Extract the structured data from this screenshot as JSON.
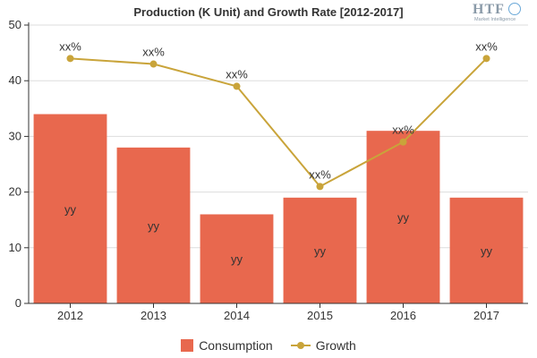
{
  "chart_data": {
    "type": "bar",
    "title": "Production (K Unit) and Growth Rate [2012-2017]",
    "categories": [
      "2012",
      "2013",
      "2014",
      "2015",
      "2016",
      "2017"
    ],
    "ylim": [
      0,
      50
    ],
    "yticks": [
      0,
      10,
      20,
      30,
      40,
      50
    ],
    "grid": true,
    "legend_position": "bottom",
    "series": [
      {
        "name": "Consumption",
        "type": "bar",
        "color": "#e8684e",
        "values": [
          34,
          28,
          16,
          19,
          31,
          19
        ],
        "labels": [
          "yy",
          "yy",
          "yy",
          "yy",
          "yy",
          "yy"
        ]
      },
      {
        "name": "Growth",
        "type": "line",
        "color": "#c9a43a",
        "values": [
          44,
          43,
          39,
          21,
          29,
          44
        ],
        "labels": [
          "xx%",
          "xx%",
          "xx%",
          "xx%",
          "xx%",
          "xx%"
        ]
      }
    ]
  },
  "logo": {
    "text": "HTF",
    "subtext": "Market Intelligence"
  }
}
